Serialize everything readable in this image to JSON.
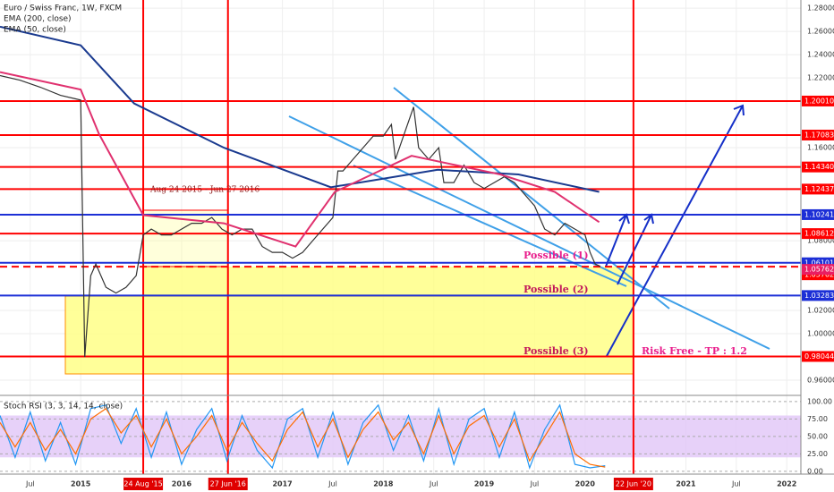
{
  "chart_data": [
    {
      "type": "line",
      "title": "Euro / Swiss Franc, 1W, FXCM",
      "xlim": [
        2014.2,
        2022.14
      ],
      "ylim": [
        0.9485,
        1.287
      ],
      "grid": true,
      "xticks": [
        {
          "value": 2014.5,
          "label": "Jul"
        },
        2015,
        2016,
        2017,
        {
          "value": 2017.5,
          "label": "Jul"
        },
        2018,
        {
          "value": 2018.5,
          "label": "Jul"
        },
        2019,
        {
          "value": 2019.5,
          "label": "Jul"
        },
        2020,
        2021,
        {
          "value": 2021.5,
          "label": "Jul"
        },
        2022
      ],
      "yticks": [
        {
          "value": 1.28,
          "label": "1.28000"
        },
        {
          "value": 1.26,
          "label": "1.26000"
        },
        {
          "value": 1.24,
          "label": "1.24000"
        },
        {
          "value": 1.22,
          "label": "1.22000"
        },
        {
          "value": 1.16,
          "label": "1.16000"
        },
        {
          "value": 1.08,
          "label": "1.08000"
        },
        {
          "value": 1.02,
          "label": "1.02000"
        },
        {
          "value": 1.0,
          "label": "1.00000"
        },
        {
          "value": 0.96,
          "label": "0.96000"
        }
      ],
      "series": [
        {
          "color": "#333333",
          "x": [
            2014.2,
            2014.4,
            2014.6,
            2014.8,
            2014.95,
            2015.0,
            2015.04,
            2015.1,
            2015.15,
            2015.25,
            2015.35,
            2015.45,
            2015.55,
            2015.62,
            2015.7,
            2015.8,
            2015.9,
            2016.0,
            2016.1,
            2016.2,
            2016.3,
            2016.4,
            2016.5,
            2016.6,
            2016.7,
            2016.8,
            2016.9,
            2017.0,
            2017.1,
            2017.2,
            2017.3,
            2017.4,
            2017.5,
            2017.55,
            2017.6,
            2017.7,
            2017.8,
            2017.9,
            2018.0,
            2018.08,
            2018.12,
            2018.2,
            2018.3,
            2018.35,
            2018.45,
            2018.55,
            2018.6,
            2018.7,
            2018.8,
            2018.9,
            2019.0,
            2019.1,
            2019.2,
            2019.3,
            2019.4,
            2019.5,
            2019.6,
            2019.7,
            2019.8,
            2019.9,
            2020.0,
            2020.05,
            2020.1,
            2020.15
          ],
          "values": [
            1.222,
            1.218,
            1.212,
            1.205,
            1.202,
            1.201,
            0.98,
            1.05,
            1.06,
            1.04,
            1.035,
            1.04,
            1.05,
            1.085,
            1.09,
            1.085,
            1.085,
            1.09,
            1.095,
            1.095,
            1.1,
            1.09,
            1.085,
            1.09,
            1.09,
            1.075,
            1.07,
            1.07,
            1.065,
            1.07,
            1.08,
            1.09,
            1.1,
            1.14,
            1.14,
            1.15,
            1.16,
            1.17,
            1.17,
            1.18,
            1.15,
            1.17,
            1.195,
            1.16,
            1.15,
            1.16,
            1.13,
            1.13,
            1.145,
            1.13,
            1.125,
            1.13,
            1.135,
            1.13,
            1.12,
            1.11,
            1.09,
            1.085,
            1.095,
            1.09,
            1.085,
            1.07,
            1.06,
            1.058
          ]
        },
        {
          "name": "EMA (200, close)",
          "color": "#1a3a8f",
          "x": [
            2014.2,
            2015.0,
            2015.53,
            2016.42,
            2017.48,
            2018.54,
            2019.34,
            2020.14
          ],
          "values": [
            1.264,
            1.248,
            1.198,
            1.16,
            1.126,
            1.141,
            1.137,
            1.122
          ]
        },
        {
          "name": "EMA (50, close)",
          "color": "#e0316f",
          "x": [
            2014.2,
            2015.0,
            2015.18,
            2015.62,
            2016.42,
            2017.13,
            2017.52,
            2018.28,
            2019.16,
            2019.7,
            2020.14
          ],
          "values": [
            1.225,
            1.21,
            1.172,
            1.102,
            1.095,
            1.075,
            1.122,
            1.153,
            1.137,
            1.122,
            1.096
          ]
        }
      ],
      "levels": [
        {
          "value": 1.2001,
          "label": "1.20010",
          "color": "#ff0000"
        },
        {
          "value": 1.17083,
          "label": "1.17083",
          "color": "#ff0000"
        },
        {
          "value": 1.1434,
          "label": "1.14340",
          "color": "#ff0000"
        },
        {
          "value": 1.12437,
          "label": "1.12437",
          "color": "#ff0000"
        },
        {
          "value": 1.10241,
          "label": "1.10241",
          "color": "#1c2fd6"
        },
        {
          "value": 1.08612,
          "label": "1.08612",
          "color": "#ff0000"
        },
        {
          "value": 1.06101,
          "label": "1.06101",
          "color": "#1c2fd6"
        },
        {
          "value": 1.05762,
          "label": "1.05762",
          "color": "#ff0000",
          "dashed": true
        },
        {
          "value": 1.03283,
          "label": "1.03283",
          "color": "#1c2fd6"
        },
        {
          "value": 0.98044,
          "label": "0.98044",
          "color": "#ff0000"
        }
      ],
      "last_price": {
        "value": 1.05762,
        "label": "1.05762",
        "color": "#e91e63"
      },
      "vlines": [
        {
          "value": 2015.62,
          "label": "24 Aug '15"
        },
        {
          "value": 2016.46,
          "label": "27 Jun '16"
        },
        {
          "value": 2020.48,
          "label": "22 Jun '20"
        }
      ],
      "annotations": [
        "Aug 24 2015 - Jun 27 2016",
        "Possible (1)",
        "Possible (2)",
        "Possible (3)",
        "Risk Free - TP : 1.2"
      ]
    },
    {
      "type": "line",
      "title": "Stoch RSI (3, 3, 14, 14, close)",
      "xlim": [
        2014.2,
        2022.14
      ],
      "ylim": [
        -4,
        105
      ],
      "band": [
        20,
        80
      ],
      "yticks": [
        {
          "value": 100,
          "label": "100.00"
        },
        {
          "value": 75,
          "label": "75.00"
        },
        {
          "value": 50,
          "label": "50.00"
        },
        {
          "value": 25,
          "label": "25.00"
        },
        {
          "value": 0,
          "label": "0.00"
        }
      ],
      "series": [
        {
          "color": "#2196f3",
          "x": [
            2014.2,
            2014.35,
            2014.5,
            2014.65,
            2014.8,
            2014.95,
            2015.1,
            2015.25,
            2015.4,
            2015.55,
            2015.7,
            2015.85,
            2016.0,
            2016.15,
            2016.3,
            2016.45,
            2016.6,
            2016.75,
            2016.9,
            2017.05,
            2017.2,
            2017.35,
            2017.5,
            2017.65,
            2017.8,
            2017.95,
            2018.1,
            2018.25,
            2018.4,
            2018.55,
            2018.7,
            2018.85,
            2019.0,
            2019.15,
            2019.3,
            2019.45,
            2019.6,
            2019.75,
            2019.9,
            2020.05,
            2020.2
          ],
          "values": [
            80,
            20,
            85,
            15,
            70,
            10,
            90,
            95,
            40,
            90,
            20,
            85,
            10,
            60,
            90,
            15,
            80,
            30,
            5,
            75,
            90,
            20,
            85,
            10,
            70,
            95,
            30,
            80,
            15,
            90,
            10,
            75,
            90,
            20,
            85,
            5,
            60,
            95,
            10,
            5,
            8
          ]
        },
        {
          "color": "#ff6d00",
          "x": [
            2014.2,
            2014.35,
            2014.5,
            2014.65,
            2014.8,
            2014.95,
            2015.1,
            2015.25,
            2015.4,
            2015.55,
            2015.7,
            2015.85,
            2016.0,
            2016.15,
            2016.3,
            2016.45,
            2016.6,
            2016.75,
            2016.9,
            2017.05,
            2017.2,
            2017.35,
            2017.5,
            2017.65,
            2017.8,
            2017.95,
            2018.1,
            2018.25,
            2018.4,
            2018.55,
            2018.7,
            2018.85,
            2019.0,
            2019.15,
            2019.3,
            2019.45,
            2019.6,
            2019.75,
            2019.9,
            2020.05,
            2020.2
          ],
          "values": [
            70,
            35,
            70,
            30,
            60,
            25,
            75,
            90,
            55,
            80,
            35,
            75,
            25,
            50,
            80,
            30,
            70,
            40,
            15,
            60,
            85,
            35,
            75,
            20,
            60,
            85,
            45,
            70,
            25,
            80,
            25,
            65,
            80,
            35,
            75,
            15,
            50,
            85,
            25,
            10,
            6
          ]
        }
      ]
    }
  ]
}
